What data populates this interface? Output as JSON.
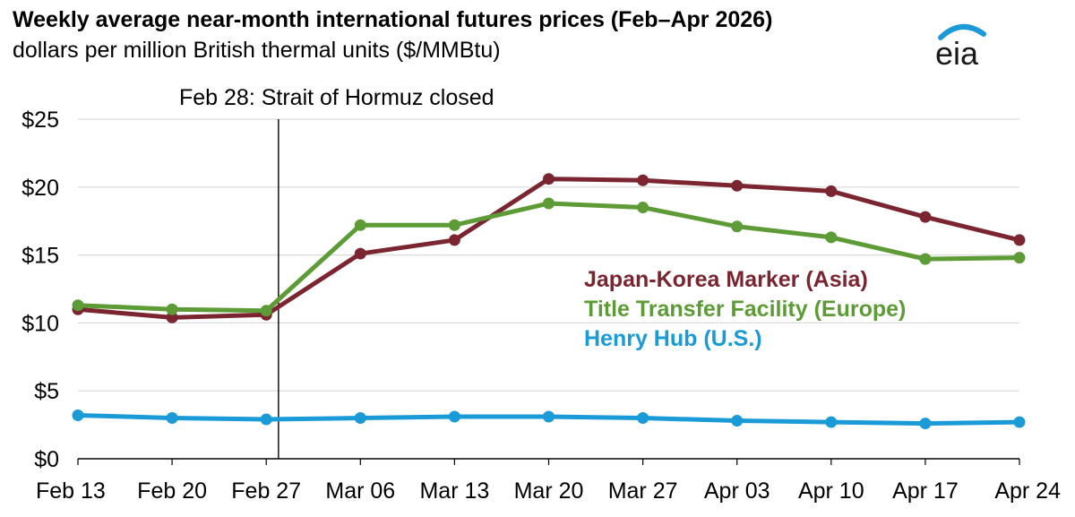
{
  "header": {
    "title": "Weekly average near-month international futures prices (Feb–Apr 2026)",
    "subtitle": "dollars per million British thermal units ($/MMBtu)",
    "logo_text": "eia"
  },
  "colors": {
    "jkm": "#7b2531",
    "ttf": "#5c9b35",
    "henry": "#1a9bd7",
    "grid": "#d9d9d9",
    "logo_arc": "#1a9bd7"
  },
  "chart_data": {
    "type": "line",
    "title": "Weekly average near-month international futures prices (Feb–Apr 2026)",
    "ylabel": "dollars per million British thermal units ($/MMBtu)",
    "categories": [
      "Feb 13",
      "Feb 20",
      "Feb 27",
      "Mar 06",
      "Mar 13",
      "Mar 20",
      "Mar 27",
      "Apr 03",
      "Apr 10",
      "Apr 17",
      "Apr 24"
    ],
    "ylim": [
      0,
      25
    ],
    "yticks": [
      0,
      5,
      10,
      15,
      20,
      25
    ],
    "ytick_labels": [
      "$0",
      "$5",
      "$10",
      "$15",
      "$20",
      "$25"
    ],
    "grid": true,
    "series": [
      {
        "name": "Japan-Korea Marker (Asia)",
        "color": "#7b2531",
        "values": [
          11.0,
          10.4,
          10.6,
          15.1,
          16.1,
          20.6,
          20.5,
          20.1,
          19.7,
          17.8,
          16.1
        ]
      },
      {
        "name": "Title Transfer Facility (Europe)",
        "color": "#5c9b35",
        "values": [
          11.3,
          11.0,
          10.9,
          17.2,
          17.2,
          18.8,
          18.5,
          17.1,
          16.3,
          14.7,
          14.8
        ]
      },
      {
        "name": "Henry Hub (U.S.)",
        "color": "#1a9bd7",
        "values": [
          3.2,
          3.0,
          2.9,
          3.0,
          3.1,
          3.1,
          3.0,
          2.8,
          2.7,
          2.6,
          2.7
        ]
      }
    ],
    "annotations": [
      {
        "text": "Feb 28: Strait of Hormuz closed",
        "x_between": [
          "Feb 27",
          "Mar 06"
        ],
        "x_fraction": 0.13
      }
    ],
    "legend_position": "right-middle"
  }
}
